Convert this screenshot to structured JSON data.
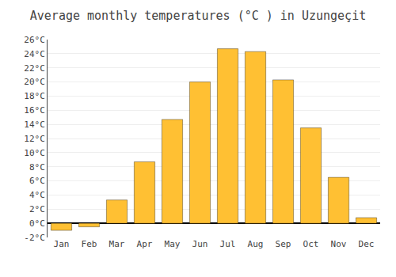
{
  "chart_data": {
    "type": "bar",
    "title": "Average monthly temperatures (°C ) in Uzungeçit",
    "categories": [
      "Jan",
      "Feb",
      "Mar",
      "Apr",
      "May",
      "Jun",
      "Jul",
      "Aug",
      "Sep",
      "Oct",
      "Nov",
      "Dec"
    ],
    "values": [
      -1.0,
      -0.5,
      3.3,
      8.7,
      14.7,
      20.0,
      24.7,
      24.3,
      20.3,
      13.5,
      6.5,
      0.8
    ],
    "color": "#FFC033",
    "ylim": [
      -2,
      26
    ],
    "yticks": [
      {
        "value": -2,
        "label": "-2°C"
      },
      {
        "value": 0,
        "label": "0°C"
      },
      {
        "value": 2,
        "label": "2°C"
      },
      {
        "value": 4,
        "label": "4°C"
      },
      {
        "value": 6,
        "label": "6°C"
      },
      {
        "value": 8,
        "label": "8°C"
      },
      {
        "value": 10,
        "label": "10°C"
      },
      {
        "value": 12,
        "label": "12°C"
      },
      {
        "value": 14,
        "label": "14°C"
      },
      {
        "value": 16,
        "label": "16°C"
      },
      {
        "value": 18,
        "label": "18°C"
      },
      {
        "value": 20,
        "label": "20°C"
      },
      {
        "value": 22,
        "label": "22°C"
      },
      {
        "value": 24,
        "label": "24°C"
      },
      {
        "value": 26,
        "label": "26°C"
      }
    ],
    "grid": true
  }
}
